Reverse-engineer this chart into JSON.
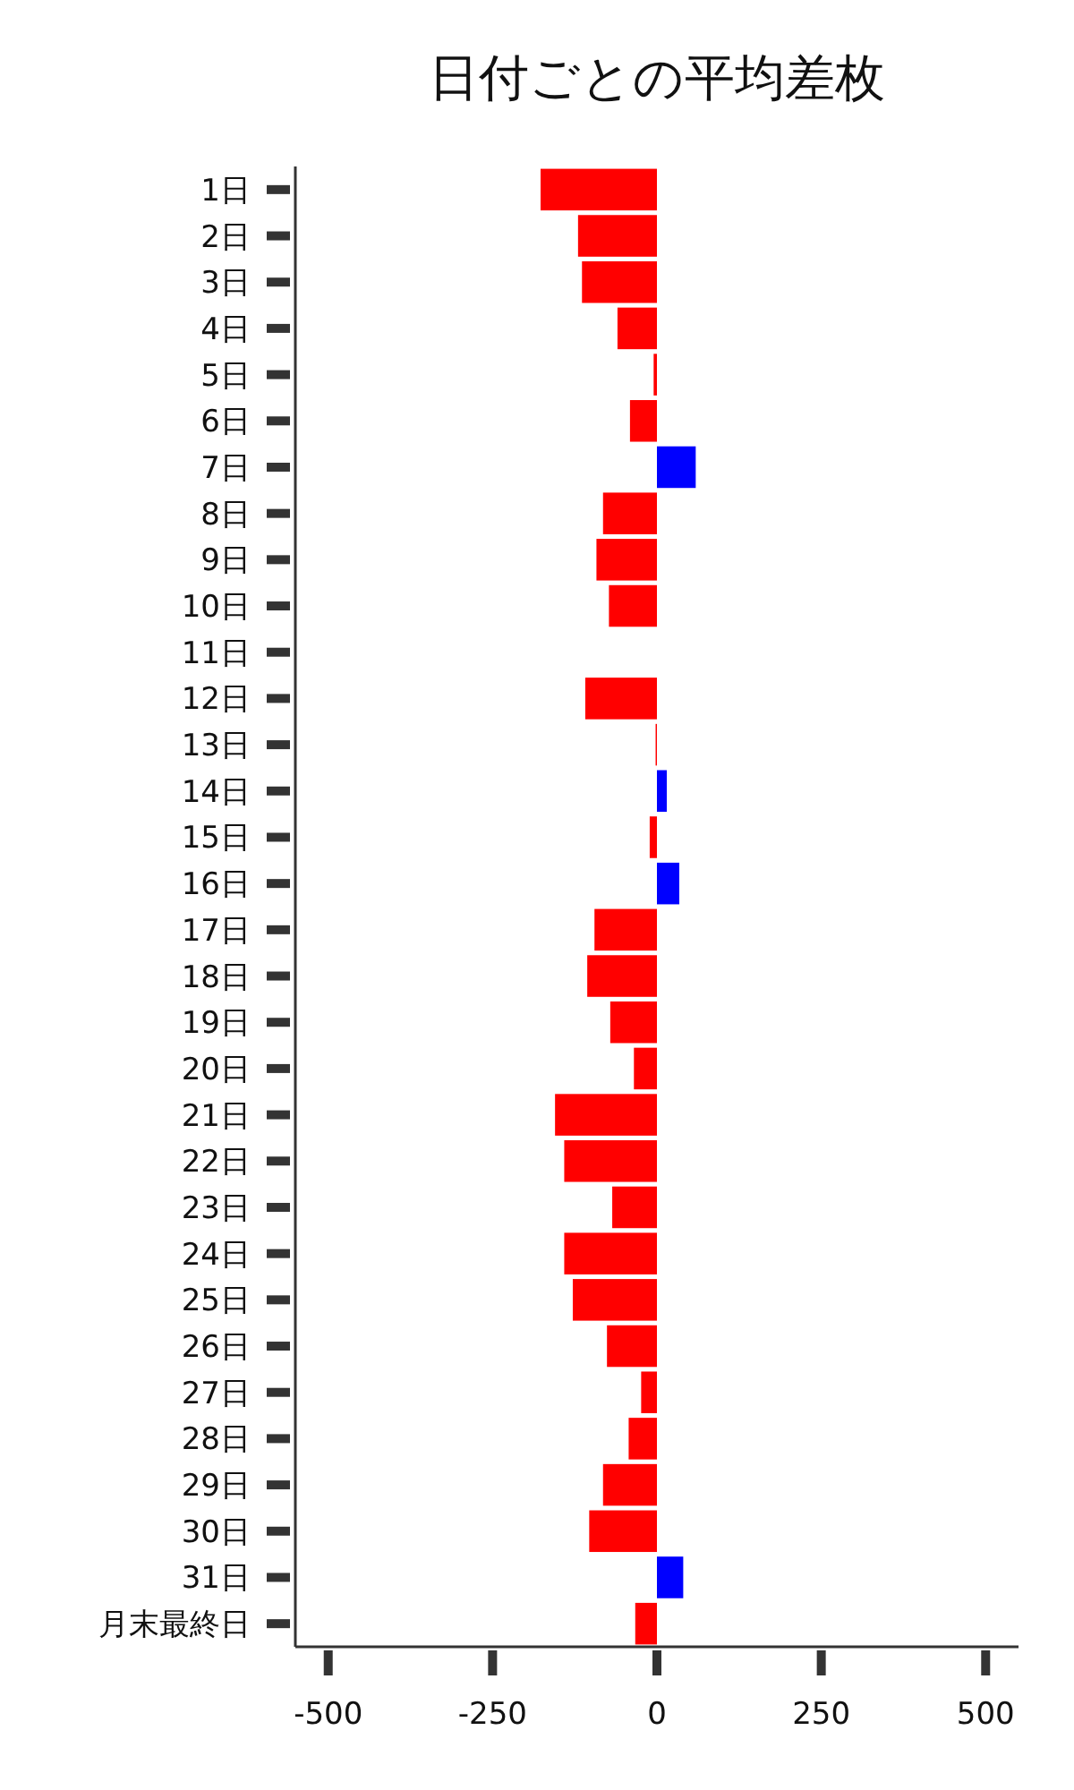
{
  "chart_data": {
    "type": "bar",
    "orientation": "horizontal",
    "title": "日付ごとの平均差枚",
    "categories": [
      "1日",
      "2日",
      "3日",
      "4日",
      "5日",
      "6日",
      "7日",
      "8日",
      "9日",
      "10日",
      "11日",
      "12日",
      "13日",
      "14日",
      "15日",
      "16日",
      "17日",
      "18日",
      "19日",
      "20日",
      "21日",
      "22日",
      "23日",
      "24日",
      "25日",
      "26日",
      "27日",
      "28日",
      "29日",
      "30日",
      "31日",
      "月末最終日"
    ],
    "values": [
      -177,
      -120,
      -114,
      -60,
      -5,
      -41,
      59,
      -82,
      -92,
      -73,
      0,
      -109,
      -2,
      15,
      -11,
      34,
      -95,
      -106,
      -71,
      -35,
      -155,
      -141,
      -68,
      -141,
      -128,
      -76,
      -24,
      -43,
      -82,
      -103,
      40,
      -33
    ],
    "colors": [
      "#ff0000",
      "#ff0000",
      "#ff0000",
      "#ff0000",
      "#ff0000",
      "#ff0000",
      "#0000ff",
      "#ff0000",
      "#ff0000",
      "#ff0000",
      "#ff0000",
      "#ff0000",
      "#ff0000",
      "#0000ff",
      "#ff0000",
      "#0000ff",
      "#ff0000",
      "#ff0000",
      "#ff0000",
      "#ff0000",
      "#ff0000",
      "#ff0000",
      "#ff0000",
      "#ff0000",
      "#ff0000",
      "#ff0000",
      "#ff0000",
      "#ff0000",
      "#ff0000",
      "#ff0000",
      "#0000ff",
      "#ff0000"
    ],
    "xlim": [
      -550,
      550
    ],
    "xticks": [
      -500,
      -250,
      0,
      250,
      500
    ]
  }
}
